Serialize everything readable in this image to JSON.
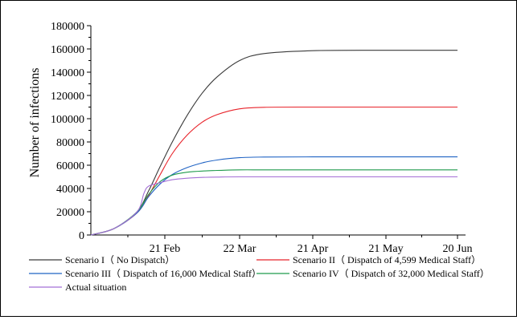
{
  "chart_data": {
    "type": "line",
    "ylabel": "Number of infections",
    "xlabel": "",
    "x_tick_labels": [
      "21 Feb",
      "22 Mar",
      "21 Apr",
      "21 May",
      "20 Jun"
    ],
    "x_tick_dates": [
      "2020-02-21",
      "2020-03-22",
      "2020-04-21",
      "2020-05-21",
      "2020-06-20"
    ],
    "x_domain": [
      "2020-01-20",
      "2020-06-20"
    ],
    "ylim": [
      0,
      180000
    ],
    "y_ticks": [
      0,
      20000,
      40000,
      60000,
      80000,
      100000,
      120000,
      140000,
      160000,
      180000
    ],
    "grid": false,
    "legend_position": "bottom",
    "x_dates": [
      "2020-01-20",
      "2020-01-30",
      "2020-02-09",
      "2020-02-14",
      "2020-02-19",
      "2020-02-24",
      "2020-03-01",
      "2020-03-07",
      "2020-03-13",
      "2020-03-22",
      "2020-04-01",
      "2020-04-21",
      "2020-05-21",
      "2020-06-20"
    ],
    "series": [
      {
        "name": "Scenario I（ No Dispatch）",
        "color": "#3a3a3a",
        "values": [
          0,
          5500,
          20000,
          38000,
          59000,
          80000,
          103000,
          122000,
          136000,
          150000,
          156000,
          158500,
          158800,
          158800
        ]
      },
      {
        "name": "Scenario II（ Dispatch of 4,599 Medical Staff）",
        "color": "#e8232a",
        "values": [
          0,
          5500,
          19000,
          34000,
          52000,
          70000,
          86000,
          97000,
          103500,
          108500,
          109800,
          110000,
          110000,
          110000
        ]
      },
      {
        "name": "Scenario III（ Dispatch of 16,000 Medical Staff）",
        "color": "#1f63c4",
        "values": [
          0,
          5500,
          19000,
          33000,
          44000,
          52000,
          58000,
          62000,
          64500,
          66500,
          67000,
          67200,
          67200,
          67200
        ]
      },
      {
        "name": "Scenario IV（ Dispatch of 32,000 Medical Staff）",
        "color": "#1f9a4c",
        "values": [
          0,
          5500,
          20000,
          35000,
          46000,
          51500,
          54000,
          55000,
          55500,
          56000,
          56000,
          56000,
          56000,
          56000
        ]
      },
      {
        "name": "Actual situation",
        "color": "#a46fd6",
        "dates": [
          "2020-01-20",
          "2020-01-30",
          "2020-02-09",
          "2020-02-12",
          "2020-02-14",
          "2020-02-19",
          "2020-02-24",
          "2020-03-01",
          "2020-03-07",
          "2020-03-13",
          "2020-03-22",
          "2020-04-21",
          "2020-05-21",
          "2020-06-20"
        ],
        "values": [
          0,
          5500,
          20000,
          36000,
          42000,
          45000,
          47500,
          48800,
          49500,
          49800,
          50000,
          50000,
          50000,
          50000
        ]
      }
    ]
  }
}
